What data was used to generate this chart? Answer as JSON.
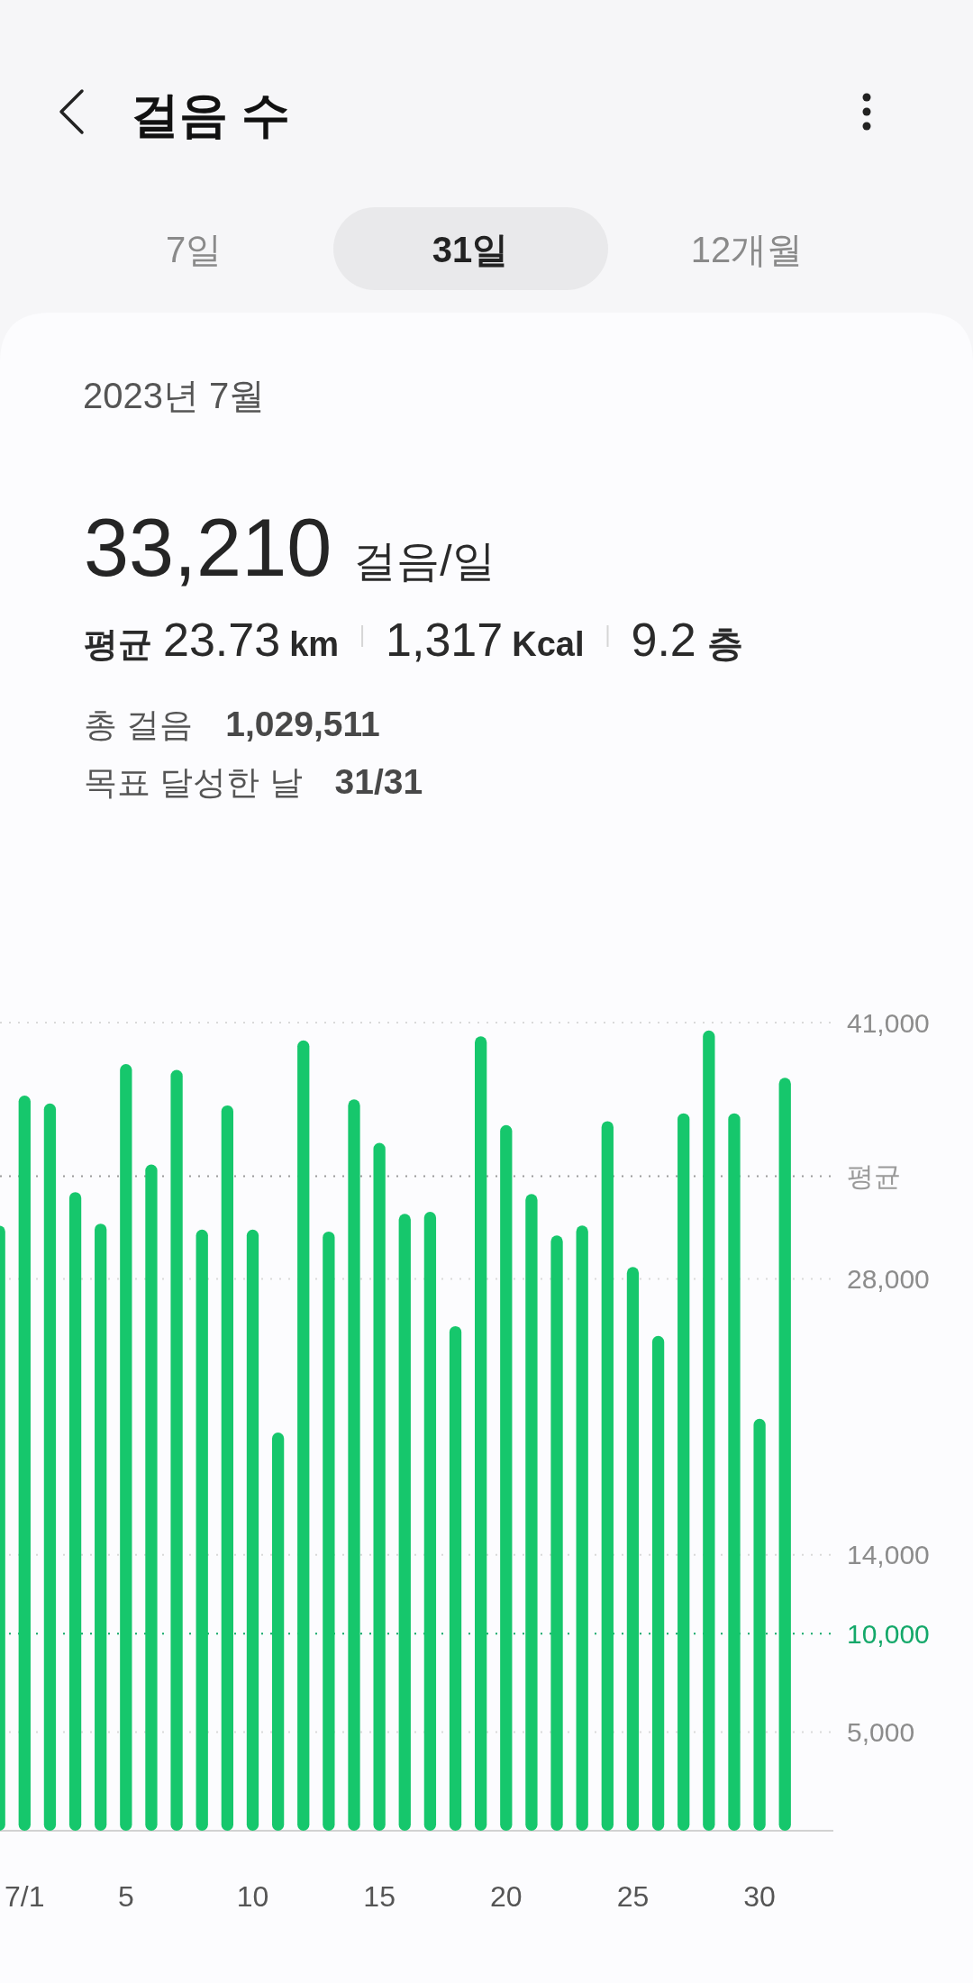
{
  "chart_data": {
    "type": "bar",
    "title": "걸음 수",
    "subtitle": "2023년 7월",
    "annotations": [
      "7일",
      "31일",
      "12개월",
      "33,210",
      "걸음/일",
      "평균",
      "23.73",
      "km",
      "1,317",
      "Kcal",
      "9.2",
      "층",
      "총 걸음",
      "1,029,511",
      "목표 달성한 날",
      "31/31"
    ],
    "categories": [
      null,
      "7/1",
      null,
      null,
      null,
      "5",
      null,
      null,
      null,
      null,
      "10",
      null,
      null,
      null,
      null,
      "15",
      null,
      null,
      null,
      null,
      "20",
      null,
      null,
      null,
      null,
      "25",
      null,
      null,
      null,
      null,
      "30",
      null
    ],
    "series": [
      {
        "color": "#16c76c",
        "values": [
          30700,
          37300,
          36900,
          32400,
          30800,
          38900,
          33800,
          38600,
          30500,
          36800,
          30500,
          20200,
          40100,
          30400,
          37100,
          34900,
          31300,
          31400,
          25600,
          40300,
          35800,
          32300,
          30200,
          30700,
          36000,
          28600,
          25100,
          36400,
          40600,
          36400,
          20900,
          38200
        ]
      }
    ],
    "ylim": [
      0,
      41000
    ],
    "yticks": [
      {
        "value": 5000,
        "label": "5,000"
      },
      {
        "value": 14000,
        "label": "14,000"
      },
      {
        "value": 28000,
        "label": "28,000"
      },
      {
        "value": 41000,
        "label": "41,000"
      }
    ],
    "grid": "y",
    "ref_lines": [
      {
        "axis": "y",
        "value": 33210,
        "label": "평균",
        "color": "#9a9a9a",
        "line_style": "dotted"
      },
      {
        "axis": "y",
        "value": 10000,
        "label": "10,000",
        "color": "#14a86a",
        "line_style": "dotted"
      }
    ]
  }
}
